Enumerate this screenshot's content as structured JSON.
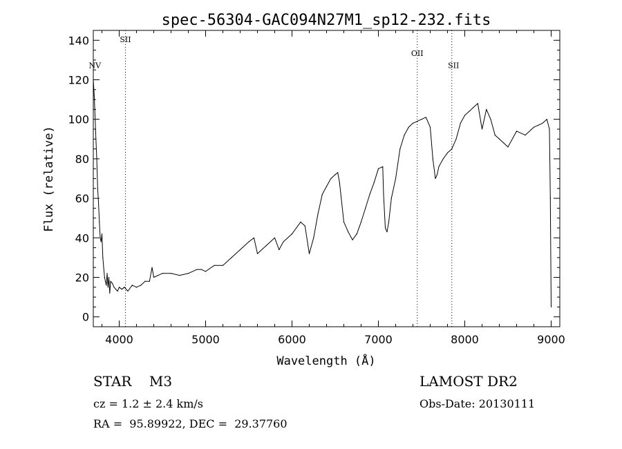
{
  "chart_data": {
    "type": "line",
    "title": "spec-56304-GAC094N27M1_sp12-232.fits",
    "xlabel": "Wavelength (Å)",
    "ylabel": "Flux (relative)",
    "xlim": [
      3700,
      9100
    ],
    "ylim": [
      -5,
      145
    ],
    "xticks": [
      4000,
      5000,
      6000,
      7000,
      8000,
      9000
    ],
    "yticks": [
      0,
      20,
      40,
      60,
      80,
      100,
      120,
      140
    ],
    "grid": false,
    "line_color": "#000000",
    "series": [
      {
        "x": [
          3700,
          3710,
          3720,
          3730,
          3740,
          3750,
          3760,
          3770,
          3780,
          3790,
          3800,
          3810,
          3820,
          3830,
          3840,
          3850,
          3860,
          3870,
          3880,
          3890,
          3900,
          3920,
          3940,
          3960,
          3980,
          4000,
          4030,
          4060,
          4100,
          4150,
          4200,
          4250,
          4300,
          4350,
          4380,
          4400,
          4450,
          4500,
          4600,
          4700,
          4800,
          4900,
          4950,
          5000,
          5100,
          5200,
          5300,
          5400,
          5500,
          5560,
          5580,
          5600,
          5700,
          5800,
          5850,
          5900,
          6000,
          6050,
          6100,
          6150,
          6200,
          6250,
          6300,
          6350,
          6400,
          6450,
          6500,
          6530,
          6550,
          6600,
          6650,
          6700,
          6750,
          6800,
          6850,
          6900,
          6950,
          7000,
          7050,
          7060,
          7080,
          7100,
          7120,
          7150,
          7200,
          7250,
          7300,
          7350,
          7400,
          7450,
          7500,
          7550,
          7600,
          7630,
          7660,
          7680,
          7700,
          7750,
          7800,
          7850,
          7900,
          7950,
          8000,
          8050,
          8100,
          8150,
          8200,
          8250,
          8300,
          8350,
          8400,
          8450,
          8500,
          8600,
          8700,
          8800,
          8850,
          8900,
          8950,
          8980,
          8990,
          9000
        ],
        "y": [
          120,
          112,
          102,
          90,
          80,
          65,
          58,
          48,
          40,
          38,
          42,
          30,
          25,
          20,
          18,
          16,
          22,
          15,
          20,
          12,
          18,
          17,
          15,
          14,
          13,
          15,
          14,
          15,
          13,
          16,
          15,
          16,
          18,
          18,
          25,
          20,
          21,
          22,
          22,
          21,
          22,
          24,
          24,
          23,
          26,
          26,
          30,
          34,
          38,
          40,
          36,
          32,
          36,
          40,
          34,
          38,
          42,
          45,
          48,
          46,
          32,
          40,
          52,
          62,
          66,
          70,
          72,
          73,
          68,
          48,
          43,
          39,
          42,
          48,
          55,
          62,
          68,
          75,
          76,
          62,
          45,
          43,
          48,
          60,
          70,
          85,
          92,
          96,
          98,
          99,
          100,
          101,
          96,
          80,
          70,
          72,
          76,
          80,
          83,
          85,
          90,
          98,
          102,
          104,
          106,
          108,
          95,
          105,
          100,
          92,
          90,
          88,
          86,
          94,
          92,
          96,
          97,
          98,
          100,
          95,
          60,
          5
        ]
      }
    ],
    "annotations": [
      {
        "label": "NV",
        "x": 3718,
        "y": 126
      },
      {
        "label": "SII",
        "x": 4072,
        "y": 139
      },
      {
        "label": "OII",
        "x": 7450,
        "y": 132
      },
      {
        "label": "SII",
        "x": 7870,
        "y": 126
      }
    ],
    "dotted_lines_x": [
      4072,
      7450,
      7850
    ]
  },
  "info": {
    "class_line": "STAR    M3",
    "survey": "LAMOST DR2",
    "cz": "cz = 1.2 ± 2.4 km/s",
    "obs_date": "Obs-Date: 20130111",
    "radec": "RA =  95.89922, DEC =  29.37760"
  }
}
